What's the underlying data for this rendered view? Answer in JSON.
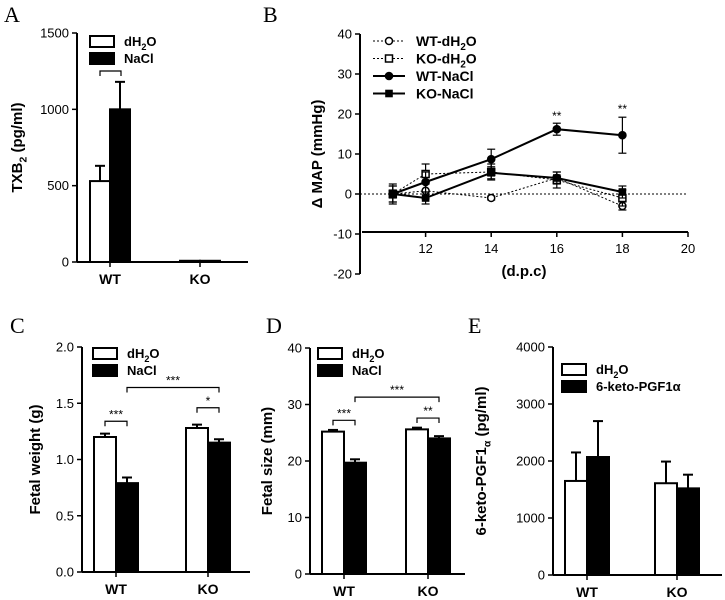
{
  "panels": {
    "A": "A",
    "B": "B",
    "C": "C",
    "D": "D",
    "E": "E"
  },
  "chart_data": [
    {
      "id": "A",
      "type": "bar",
      "ylabel_main": "TXB",
      "ylabel_sub": "2",
      "ylabel_tail": " (pg/ml)",
      "categories": [
        "WT",
        "KO"
      ],
      "ylim": [
        0,
        1500
      ],
      "yticks": [
        "0",
        "500",
        "1000",
        "1500"
      ],
      "series": [
        {
          "name": "dH2O",
          "fill": "#ffffff",
          "values": [
            530,
            8
          ],
          "errors": [
            100,
            0
          ]
        },
        {
          "name": "NaCl",
          "fill": "#000000",
          "values": [
            1000,
            8
          ],
          "errors": [
            180,
            0
          ]
        }
      ],
      "legend": [
        {
          "main": "dH",
          "sub": "2",
          "tail": "O"
        },
        {
          "main": "NaCl",
          "sub": "",
          "tail": ""
        }
      ],
      "annotations": [
        {
          "text": "*",
          "between": "WT-dH2O/WT-NaCl"
        }
      ]
    },
    {
      "id": "B",
      "type": "line",
      "ylabel": "Δ MAP (mmHg)",
      "xlabel": "(d.p.c)",
      "xlim": [
        10,
        20
      ],
      "ylim": [
        -20,
        40
      ],
      "xticks": [
        "12",
        "14",
        "16",
        "18",
        "20"
      ],
      "yticks": [
        "-20",
        "-10",
        "0",
        "10",
        "20",
        "30",
        "40"
      ],
      "x": [
        11,
        12,
        14,
        16,
        18
      ],
      "series": [
        {
          "name": "WT-dH2O",
          "values": [
            0,
            0.8,
            -1,
            4,
            -3
          ],
          "errors": [
            2,
            2,
            0.5,
            0.5,
            1
          ]
        },
        {
          "name": "KO-dH2O",
          "values": [
            0,
            5,
            5.5,
            3.5,
            -1
          ],
          "errors": [
            2,
            2.5,
            2,
            2,
            2
          ]
        },
        {
          "name": "WT-NaCl",
          "values": [
            0,
            3,
            8.7,
            16.2,
            14.7
          ],
          "errors": [
            1,
            2.5,
            2.5,
            1.5,
            4.5
          ]
        },
        {
          "name": "KO-NaCl",
          "values": [
            0,
            -1,
            5.3,
            4,
            0.5
          ],
          "errors": [
            2.5,
            1.5,
            1.5,
            1.5,
            1.5
          ]
        }
      ],
      "legend": [
        {
          "main": "WT-dH",
          "sub": "2",
          "tail": "O"
        },
        {
          "main": "KO-dH",
          "sub": "2",
          "tail": "O"
        },
        {
          "main": "WT-NaCl",
          "sub": "",
          "tail": ""
        },
        {
          "main": "KO-NaCl",
          "sub": "",
          "tail": ""
        }
      ],
      "annotations": [
        {
          "text": "**",
          "x": 16
        },
        {
          "text": "**",
          "x": 18
        }
      ]
    },
    {
      "id": "C",
      "type": "bar",
      "ylabel": "Fetal weight (g)",
      "categories": [
        "WT",
        "KO"
      ],
      "ylim": [
        0,
        2
      ],
      "yticks": [
        "0.0",
        "0.5",
        "1.0",
        "1.5",
        "2.0"
      ],
      "series": [
        {
          "name": "dH2O",
          "fill": "#ffffff",
          "values": [
            1.2,
            1.28
          ],
          "errors": [
            0.03,
            0.03
          ]
        },
        {
          "name": "NaCl",
          "fill": "#000000",
          "values": [
            0.79,
            1.15
          ],
          "errors": [
            0.05,
            0.03
          ]
        }
      ],
      "legend": [
        {
          "main": "dH",
          "sub": "2",
          "tail": "O"
        },
        {
          "main": "NaCl",
          "sub": "",
          "tail": ""
        }
      ],
      "annotations": [
        {
          "text": "***"
        },
        {
          "text": "*"
        },
        {
          "text": "***"
        }
      ]
    },
    {
      "id": "D",
      "type": "bar",
      "ylabel": "Fetal size (mm)",
      "categories": [
        "WT",
        "KO"
      ],
      "ylim": [
        0,
        40
      ],
      "yticks": [
        "0",
        "10",
        "20",
        "30",
        "40"
      ],
      "series": [
        {
          "name": "dH2O",
          "fill": "#ffffff",
          "values": [
            25.2,
            25.6
          ],
          "errors": [
            0.3,
            0.3
          ]
        },
        {
          "name": "NaCl",
          "fill": "#000000",
          "values": [
            19.7,
            24
          ],
          "errors": [
            0.6,
            0.4
          ]
        }
      ],
      "legend": [
        {
          "main": "dH",
          "sub": "2",
          "tail": "O"
        },
        {
          "main": "NaCl",
          "sub": "",
          "tail": ""
        }
      ],
      "annotations": [
        {
          "text": "***"
        },
        {
          "text": "**"
        },
        {
          "text": "***"
        }
      ]
    },
    {
      "id": "E",
      "type": "bar",
      "ylabel_main": "6-keto-PGF1",
      "ylabel_sub": "α",
      "ylabel_tail": " (pg/ml)",
      "categories": [
        "WT",
        "KO"
      ],
      "ylim": [
        0,
        4000
      ],
      "yticks": [
        "0",
        "1000",
        "2000",
        "3000",
        "4000"
      ],
      "series": [
        {
          "name": "dH2O",
          "fill": "#ffffff",
          "values": [
            1650,
            1610
          ],
          "errors": [
            500,
            380
          ]
        },
        {
          "name": "6-keto-PGF1α",
          "fill": "#000000",
          "values": [
            2070,
            1520
          ],
          "errors": [
            630,
            240
          ]
        }
      ],
      "legend": [
        {
          "main": "dH",
          "sub": "2",
          "tail": "O"
        },
        {
          "main": "6-keto-PGF1α",
          "sub": "",
          "tail": ""
        }
      ],
      "annotations": []
    }
  ]
}
